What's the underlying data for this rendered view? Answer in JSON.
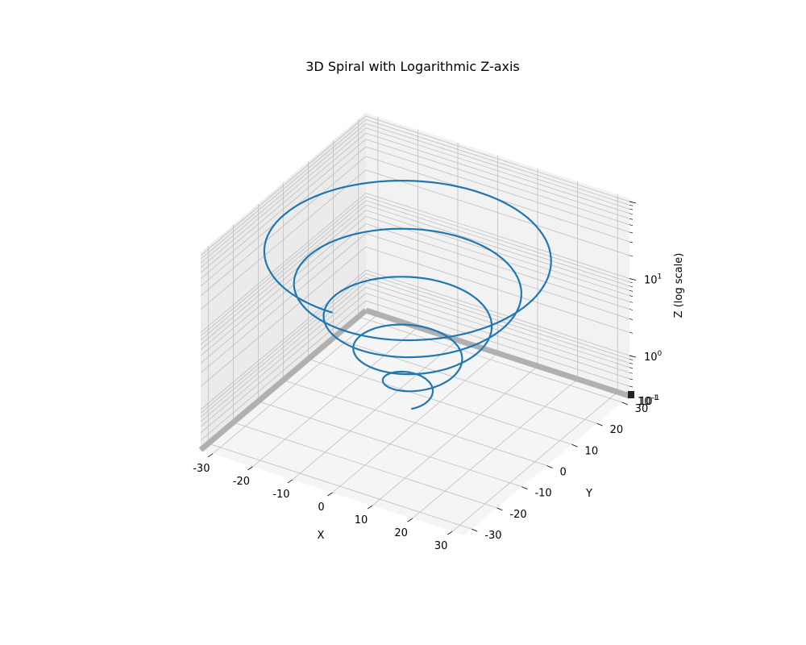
{
  "chart_data": {
    "type": "line",
    "title": "3D Spiral with Logarithmic Z-axis",
    "xlabel": "X",
    "ylabel": "Y",
    "zlabel": "Z (log scale)",
    "z_scale": "log",
    "grid": true,
    "x_ticks": [
      -30,
      -20,
      -10,
      0,
      10,
      20,
      30
    ],
    "y_ticks": [
      30,
      20,
      10,
      0,
      -10,
      -20,
      -30
    ],
    "z_tick_major": [
      {
        "base": "10",
        "exp": "0",
        "value": 1
      },
      {
        "base": "10",
        "exp": "1",
        "value": 10
      }
    ],
    "z_tick_overlap": [
      {
        "base": "10",
        "exp": "-1"
      },
      {
        "base": "10",
        "exp": "-1"
      }
    ],
    "series": [
      {
        "color": "#1f77b4",
        "turns": 5,
        "r_end": 33,
        "z_start": 0.5,
        "z_end": 65
      }
    ],
    "colors": {
      "line": "#1f77b4",
      "pane": "#f2f2f2",
      "grid": "#bfbfbf",
      "edge": "#b0b0b0"
    }
  }
}
